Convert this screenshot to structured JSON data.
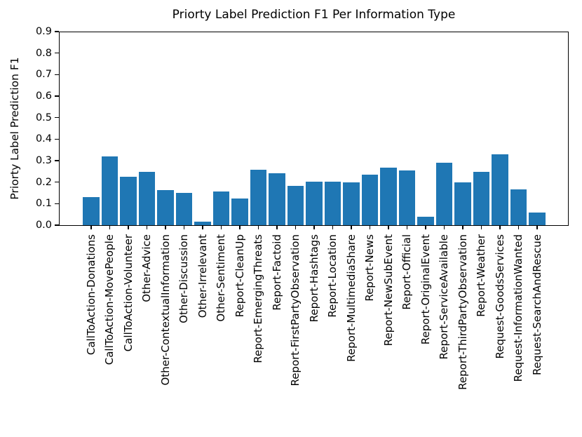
{
  "chart_data": {
    "type": "bar",
    "title": "Priorty Label Prediction F1 Per Information Type",
    "xlabel": "",
    "ylabel": "Priorty Label Prediction F1",
    "ylim": [
      0,
      0.9
    ],
    "yticks": [
      0.0,
      0.1,
      0.2,
      0.3,
      0.4,
      0.5,
      0.6,
      0.7,
      0.8,
      0.9
    ],
    "ytick_labels": [
      "0.0",
      "0.1",
      "0.2",
      "0.3",
      "0.4",
      "0.5",
      "0.6",
      "0.7",
      "0.8",
      "0.9"
    ],
    "grid": false,
    "legend": false,
    "bar_color": "#1f77b4",
    "axis_color": "#000000",
    "background_color": "#ffffff",
    "x_tick_label_rotation_deg": 90,
    "categories": [
      "CallToAction-Donations",
      "CallToAction-MovePeople",
      "CallToAction-Volunteer",
      "Other-Advice",
      "Other-ContextualInformation",
      "Other-Discussion",
      "Other-Irrelevant",
      "Other-Sentiment",
      "Report-CleanUp",
      "Report-EmergingThreats",
      "Report-Factoid",
      "Report-FirstPartyObservation",
      "Report-Hashtags",
      "Report-Location",
      "Report-MultimediaShare",
      "Report-News",
      "Report-NewSubEvent",
      "Report-Official",
      "Report-OriginalEvent",
      "Report-ServiceAvailable",
      "Report-ThirdPartyObservation",
      "Report-Weather",
      "Request-GoodsServices",
      "Request-InformationWanted",
      "Request-SearchAndRescue"
    ],
    "values": [
      0.13,
      0.318,
      0.226,
      0.248,
      0.163,
      0.151,
      0.017,
      0.157,
      0.123,
      0.259,
      0.241,
      0.181,
      0.203,
      0.203,
      0.2,
      0.236,
      0.269,
      0.255,
      0.04,
      0.29,
      0.198,
      0.249,
      0.329,
      0.165,
      0.06
    ]
  }
}
